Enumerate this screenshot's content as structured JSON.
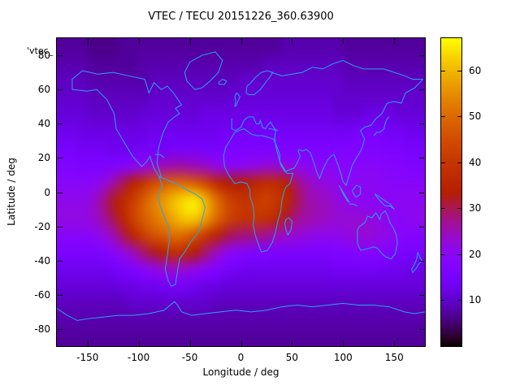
{
  "figure": {
    "title": "VTEC / TECU 20151226_360.63900",
    "key_label": "'vtec_",
    "xlabel": "Longitude / deg",
    "ylabel": "Latitude / deg"
  },
  "colors": {
    "background": "#ffffff",
    "axis": "#000000",
    "coastline": "#2aa3ef",
    "low_value": "#0a0014",
    "mid_value": "#8b07f3",
    "high_value": "#f5e800"
  },
  "chart_data": {
    "type": "heatmap",
    "title": "VTEC / TECU 20151226_360.63900",
    "xlabel": "Longitude / deg",
    "ylabel": "Latitude / deg",
    "key_label": "'vtec_",
    "units": "TECU",
    "x_ticks": [
      -150,
      -100,
      -50,
      0,
      50,
      100,
      150
    ],
    "y_ticks": [
      -80,
      -60,
      -40,
      -20,
      0,
      20,
      40,
      60,
      80
    ],
    "xlim": [
      -180,
      180
    ],
    "ylim": [
      -90,
      90
    ],
    "grid_lines": false,
    "colorbar": {
      "position": "right",
      "ticks": [
        10,
        20,
        30,
        40,
        50,
        60
      ],
      "range": [
        0,
        67
      ],
      "palette": "gnuplot rgbformulae 7,5,15 (black - purple - violet - red - orange - yellow)"
    },
    "grid": {
      "lon_min": -180,
      "lon_max": 180,
      "lon_cells": 36,
      "lat_min": -90,
      "lat_max": 90,
      "lat_cells": 18,
      "order": "rows top to bottom, lat centers +85 to -85; cols left to right, lon centers -175 to +175 step 10",
      "lat_centers": [
        85,
        75,
        65,
        55,
        45,
        35,
        25,
        15,
        5,
        -5,
        -15,
        -25,
        -35,
        -45,
        -55,
        -65,
        -75,
        -85
      ],
      "values_tecu": [
        [
          7,
          7,
          7,
          6,
          6,
          6,
          7,
          7,
          7,
          7,
          7,
          7,
          7,
          7,
          7,
          7,
          7,
          7,
          7,
          7,
          7,
          7,
          8,
          8,
          8,
          8,
          8,
          8,
          7,
          7,
          7,
          7,
          7,
          7,
          7,
          7
        ],
        [
          8,
          8,
          8,
          7,
          7,
          7,
          7,
          7,
          8,
          8,
          8,
          8,
          8,
          8,
          8,
          8,
          8,
          8,
          8,
          8,
          9,
          9,
          9,
          9,
          9,
          9,
          9,
          9,
          8,
          8,
          8,
          8,
          8,
          8,
          8,
          8
        ],
        [
          9,
          9,
          9,
          8,
          8,
          8,
          8,
          8,
          8,
          9,
          9,
          9,
          9,
          9,
          9,
          9,
          9,
          9,
          10,
          10,
          10,
          10,
          10,
          10,
          10,
          10,
          10,
          10,
          9,
          9,
          9,
          9,
          9,
          9,
          9,
          9
        ],
        [
          10,
          10,
          10,
          9,
          9,
          9,
          9,
          9,
          9,
          10,
          10,
          10,
          10,
          10,
          10,
          10,
          10,
          11,
          11,
          11,
          11,
          11,
          11,
          11,
          11,
          11,
          11,
          10,
          10,
          10,
          10,
          10,
          10,
          10,
          10,
          10
        ],
        [
          11,
          11,
          11,
          10,
          10,
          10,
          10,
          10,
          11,
          11,
          11,
          11,
          11,
          11,
          12,
          12,
          12,
          12,
          12,
          12,
          12,
          12,
          12,
          12,
          12,
          12,
          12,
          11,
          11,
          11,
          12,
          12,
          12,
          11,
          11,
          11
        ],
        [
          13,
          13,
          12,
          12,
          12,
          12,
          12,
          12,
          12,
          13,
          13,
          13,
          13,
          13,
          13,
          13,
          14,
          14,
          14,
          14,
          14,
          14,
          14,
          14,
          14,
          14,
          14,
          14,
          14,
          15,
          15,
          15,
          14,
          14,
          13,
          13
        ],
        [
          15,
          15,
          14,
          14,
          14,
          13,
          13,
          13,
          14,
          14,
          14,
          15,
          15,
          15,
          15,
          15,
          16,
          16,
          16,
          16,
          16,
          16,
          16,
          16,
          16,
          16,
          16,
          17,
          17,
          17,
          17,
          17,
          16,
          16,
          15,
          15
        ],
        [
          17,
          17,
          16,
          16,
          16,
          17,
          18,
          20,
          22,
          24,
          25,
          26,
          26,
          25,
          24,
          22,
          21,
          20,
          21,
          22,
          23,
          23,
          22,
          21,
          20,
          19,
          19,
          19,
          19,
          19,
          19,
          19,
          18,
          18,
          17,
          17
        ],
        [
          19,
          19,
          19,
          20,
          22,
          26,
          30,
          35,
          40,
          45,
          48,
          50,
          50,
          48,
          44,
          38,
          34,
          33,
          34,
          36,
          38,
          37,
          34,
          28,
          25,
          23,
          22,
          21,
          20,
          20,
          20,
          20,
          19,
          19,
          19,
          19
        ],
        [
          21,
          21,
          21,
          23,
          27,
          32,
          37,
          42,
          48,
          53,
          57,
          61,
          64,
          65,
          60,
          52,
          45,
          41,
          39,
          41,
          42,
          40,
          36,
          30,
          26,
          25,
          24,
          22,
          21,
          20,
          20,
          20,
          20,
          20,
          20,
          20
        ],
        [
          22,
          22,
          22,
          23,
          26,
          30,
          36,
          43,
          48,
          52,
          55,
          59,
          62,
          62,
          58,
          51,
          45,
          41,
          39,
          40,
          39,
          36,
          31,
          27,
          26,
          25,
          24,
          23,
          23,
          23,
          22,
          21,
          20,
          19,
          20,
          21
        ],
        [
          19,
          19,
          19,
          20,
          22,
          25,
          30,
          36,
          42,
          46,
          48,
          51,
          50,
          46,
          41,
          36,
          31,
          29,
          28,
          28,
          27,
          25,
          24,
          23,
          22,
          21,
          21,
          21,
          22,
          23,
          23,
          22,
          21,
          19,
          18,
          18
        ],
        [
          16,
          16,
          16,
          16,
          17,
          19,
          22,
          25,
          29,
          32,
          35,
          38,
          36,
          33,
          29,
          25,
          21,
          19,
          18,
          17,
          17,
          16,
          16,
          16,
          16,
          16,
          16,
          17,
          17,
          18,
          18,
          18,
          17,
          16,
          15,
          15
        ],
        [
          13,
          13,
          13,
          13,
          13,
          14,
          15,
          17,
          19,
          21,
          23,
          24,
          23,
          21,
          19,
          17,
          15,
          14,
          13,
          13,
          13,
          13,
          13,
          13,
          13,
          13,
          13,
          14,
          14,
          14,
          14,
          14,
          13,
          13,
          12,
          12
        ],
        [
          11,
          11,
          11,
          11,
          11,
          11,
          12,
          12,
          13,
          13,
          14,
          14,
          14,
          13,
          12,
          12,
          11,
          11,
          11,
          11,
          11,
          11,
          11,
          11,
          11,
          11,
          11,
          11,
          11,
          11,
          11,
          11,
          11,
          11,
          11,
          11
        ],
        [
          9,
          9,
          9,
          9,
          9,
          9,
          9,
          10,
          10,
          10,
          10,
          10,
          10,
          10,
          10,
          9,
          9,
          9,
          9,
          9,
          9,
          9,
          9,
          9,
          9,
          9,
          9,
          9,
          9,
          9,
          9,
          9,
          9,
          9,
          9,
          9
        ],
        [
          8,
          8,
          8,
          8,
          8,
          8,
          8,
          8,
          8,
          8,
          8,
          8,
          8,
          8,
          8,
          8,
          8,
          8,
          8,
          8,
          8,
          8,
          8,
          8,
          8,
          8,
          8,
          8,
          8,
          8,
          8,
          8,
          8,
          8,
          8,
          8
        ],
        [
          7,
          7,
          7,
          7,
          7,
          7,
          7,
          7,
          7,
          7,
          7,
          7,
          7,
          7,
          7,
          7,
          7,
          7,
          7,
          7,
          7,
          7,
          7,
          7,
          7,
          7,
          7,
          7,
          7,
          7,
          7,
          7,
          7,
          7,
          7,
          7
        ]
      ]
    }
  }
}
